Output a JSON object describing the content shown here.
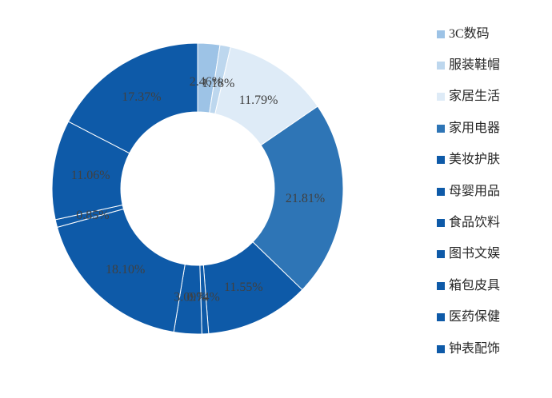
{
  "chart_data": {
    "type": "pie",
    "subtype": "donut",
    "title": "",
    "legend_position": "right",
    "direction": "clockwise",
    "start_angle_deg": 0,
    "donut_hole_ratio": 0.53,
    "categories": [
      "3C数码",
      "服装鞋帽",
      "家居生活",
      "家用电器",
      "美妆护肤",
      "母婴用品",
      "食品饮料",
      "图书文娱",
      "箱包皮具",
      "医药保健",
      "钟表配饰"
    ],
    "values": [
      2.46,
      1.18,
      11.79,
      21.81,
      11.55,
      0.74,
      3.09,
      18.1,
      0.85,
      11.06,
      17.37
    ],
    "labels": [
      "2.46%",
      "1.18%",
      "11.79%",
      "21.81%",
      "11.55%",
      "0.74%",
      "3.09%",
      "18.10%",
      "0.85%",
      "11.06%",
      "17.37%"
    ],
    "colors": [
      "#9DC3E6",
      "#BDD7EE",
      "#DEEBF7",
      "#2E75B6",
      "#0E5AA8",
      "#0E5AA8",
      "#0E5AA8",
      "#0E5AA8",
      "#0E5AA8",
      "#0E5AA8",
      "#0E5AA8"
    ],
    "label_color": "#404040",
    "legend_text_color": "#262626",
    "slice_border_color": "#FFFFFF",
    "background_color": "#FFFFFF"
  }
}
